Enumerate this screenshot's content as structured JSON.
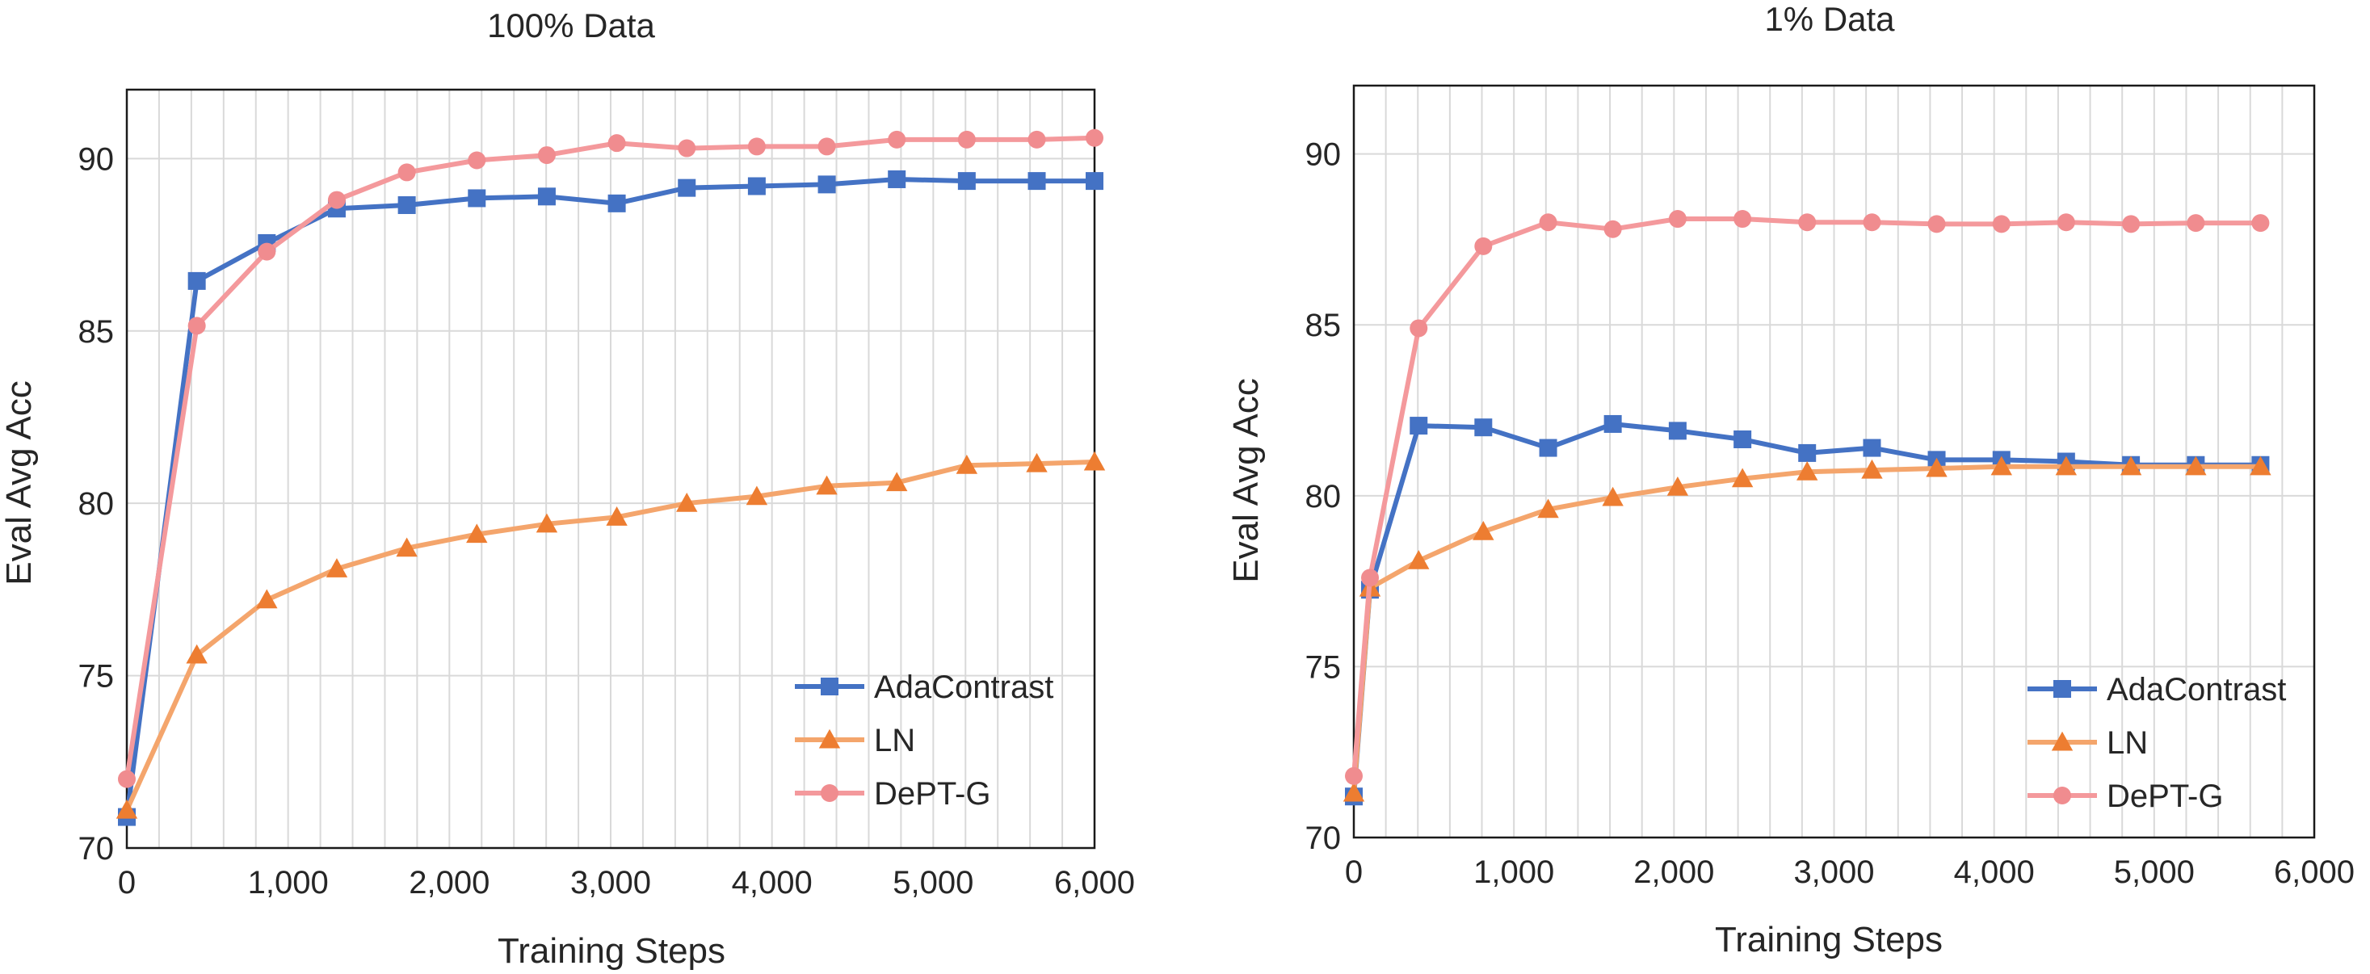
{
  "chart_data": [
    {
      "type": "line",
      "title": "100% Data",
      "xlabel": "Training Steps",
      "ylabel": "Eval Avg Acc",
      "xlim": [
        0,
        6000
      ],
      "ylim": [
        70,
        92
      ],
      "xticks": [
        0,
        1000,
        2000,
        3000,
        4000,
        5000,
        6000
      ],
      "xtick_labels": [
        "0",
        "1,000",
        "2,000",
        "3,000",
        "4,000",
        "5,000",
        "6,000"
      ],
      "yticks": [
        70,
        75,
        80,
        85,
        90
      ],
      "ytick_labels": [
        "70",
        "75",
        "80",
        "85",
        "90"
      ],
      "vertical_gridlines_every": 200,
      "legend_position": "bottom-right",
      "series": [
        {
          "name": "AdaContrast",
          "marker": "square",
          "color": "#4472C4",
          "marker_color": "#4472C4",
          "x": [
            0,
            434,
            868,
            1302,
            1736,
            2170,
            2604,
            3038,
            3472,
            3906,
            4340,
            4774,
            5208,
            5642,
            6000
          ],
          "y": [
            70.9,
            86.45,
            87.55,
            88.55,
            88.65,
            88.85,
            88.9,
            88.7,
            89.15,
            89.2,
            89.25,
            89.4,
            89.35,
            89.35,
            89.35
          ]
        },
        {
          "name": "LN",
          "marker": "triangle",
          "color": "#F4A56C",
          "marker_color": "#ED7D31",
          "x": [
            0,
            434,
            868,
            1302,
            1736,
            2170,
            2604,
            3038,
            3472,
            3906,
            4340,
            4774,
            5208,
            5642,
            6000
          ],
          "y": [
            71.1,
            75.6,
            77.2,
            78.1,
            78.7,
            79.1,
            79.4,
            79.6,
            80.0,
            80.2,
            80.5,
            80.6,
            81.1,
            81.15,
            81.2
          ]
        },
        {
          "name": "DePT-G",
          "marker": "circle",
          "color": "#F4999C",
          "marker_color": "#F08C8F",
          "x": [
            0,
            434,
            868,
            1302,
            1736,
            2170,
            2604,
            3038,
            3472,
            3906,
            4340,
            4774,
            5208,
            5642,
            6000
          ],
          "y": [
            72.0,
            85.15,
            87.3,
            88.8,
            89.6,
            89.95,
            90.1,
            90.45,
            90.3,
            90.35,
            90.35,
            90.55,
            90.55,
            90.55,
            90.6
          ]
        }
      ]
    },
    {
      "type": "line",
      "title": "1% Data",
      "xlabel": "Training Steps",
      "ylabel": "Eval Avg Acc",
      "xlim": [
        0,
        6000
      ],
      "ylim": [
        70,
        92
      ],
      "xticks": [
        0,
        1000,
        2000,
        3000,
        4000,
        5000,
        6000
      ],
      "xtick_labels": [
        "0",
        "1,000",
        "2,000",
        "3,000",
        "4,000",
        "5,000",
        "6,000"
      ],
      "yticks": [
        70,
        75,
        80,
        85,
        90
      ],
      "ytick_labels": [
        "70",
        "75",
        "80",
        "85",
        "90"
      ],
      "vertical_gridlines_every": 200,
      "legend_position": "bottom-right",
      "series": [
        {
          "name": "AdaContrast",
          "marker": "square",
          "color": "#4472C4",
          "marker_color": "#4472C4",
          "x": [
            0,
            101,
            405,
            809,
            1214,
            1618,
            2023,
            2428,
            2832,
            3237,
            3641,
            4046,
            4450,
            4855,
            5260,
            5664
          ],
          "y": [
            71.2,
            77.25,
            82.05,
            82.0,
            81.4,
            82.1,
            81.9,
            81.65,
            81.25,
            81.4,
            81.05,
            81.05,
            81.0,
            80.9,
            80.9,
            80.9
          ]
        },
        {
          "name": "LN",
          "marker": "triangle",
          "color": "#F4A56C",
          "marker_color": "#ED7D31",
          "x": [
            0,
            101,
            405,
            809,
            1214,
            1618,
            2023,
            2428,
            2832,
            3237,
            3641,
            4046,
            4450,
            4855,
            5260,
            5664
          ],
          "y": [
            71.3,
            77.3,
            78.1,
            78.95,
            79.6,
            79.95,
            80.25,
            80.5,
            80.7,
            80.75,
            80.8,
            80.85,
            80.85,
            80.85,
            80.85,
            80.85
          ]
        },
        {
          "name": "DePT-G",
          "marker": "circle",
          "color": "#F4999C",
          "marker_color": "#F08C8F",
          "x": [
            0,
            101,
            405,
            809,
            1214,
            1618,
            2023,
            2428,
            2832,
            3237,
            3641,
            4046,
            4450,
            4855,
            5260,
            5664
          ],
          "y": [
            71.8,
            77.6,
            84.9,
            87.3,
            88.0,
            87.8,
            88.1,
            88.1,
            88.0,
            88.0,
            87.95,
            87.95,
            88.0,
            87.95,
            87.98,
            87.98
          ]
        }
      ]
    }
  ]
}
